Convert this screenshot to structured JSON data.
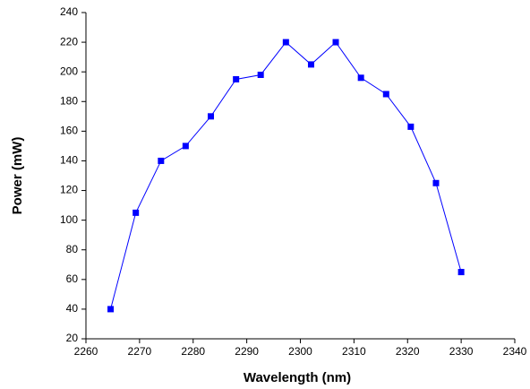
{
  "chart_data": {
    "type": "line",
    "x_label": "Wavelength (nm)",
    "y_label": "Power (mW)",
    "x": [
      2264.6,
      2269.3,
      2274,
      2278.6,
      2283.3,
      2288,
      2292.6,
      2297.3,
      2302,
      2306.6,
      2311.3,
      2316,
      2320.6,
      2325.3,
      2330
    ],
    "series": [
      {
        "name": "Power",
        "color": "#0000ff",
        "values": [
          40,
          105,
          140,
          150,
          170,
          195,
          198,
          220,
          205,
          220,
          196,
          185,
          163,
          125,
          65
        ]
      }
    ],
    "xlim": [
      2260,
      2340
    ],
    "xticks": [
      2260,
      2270,
      2280,
      2290,
      2300,
      2310,
      2320,
      2330,
      2340
    ],
    "ylim": [
      20,
      240
    ],
    "yticks": [
      20,
      40,
      60,
      80,
      100,
      120,
      140,
      160,
      180,
      200,
      220,
      240
    ]
  }
}
